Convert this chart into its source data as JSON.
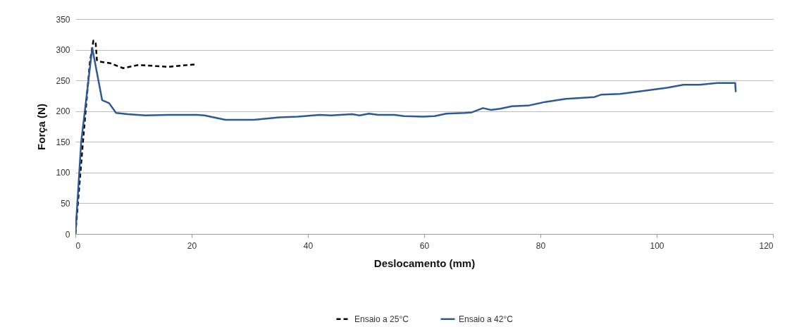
{
  "chart_data": {
    "type": "line",
    "xlabel": "Deslocamento (mm)",
    "ylabel": "Força (N)",
    "xlim": [
      0,
      120
    ],
    "xticks": [
      0,
      20,
      40,
      60,
      80,
      100,
      120
    ],
    "ylim": [
      0,
      350
    ],
    "yticks": [
      0,
      50,
      100,
      150,
      200,
      250,
      300,
      350
    ],
    "grid": "y",
    "legend": "bottom",
    "series": [
      {
        "name": "Ensaio a 25°C",
        "color": "#000000",
        "line_style": "dashed",
        "x": [
          0,
          1.3,
          2.5,
          3.1,
          3.5,
          3.7,
          4,
          6,
          8.2,
          10.7,
          13,
          16,
          18,
          20.6
        ],
        "values": [
          0,
          150,
          280,
          315,
          310,
          283,
          281,
          278,
          270,
          275,
          274,
          272,
          274,
          276
        ]
      },
      {
        "name": "Ensaio a 42°C",
        "color": "#2e5a94",
        "line_style": "solid",
        "x": [
          0,
          1,
          2.9,
          4.6,
          5.8,
          7,
          9,
          12,
          16,
          19.8,
          21,
          22.2,
          25.8,
          29,
          30.7,
          35.1,
          38.3,
          42,
          44,
          47.6,
          48.9,
          50.5,
          52.1,
          54.9,
          56.5,
          59.8,
          61.8,
          63.8,
          67,
          68.2,
          70.1,
          71.5,
          73.1,
          75.1,
          77.9,
          80.8,
          84.4,
          89.3,
          90.5,
          93.7,
          97.7,
          101.8,
          104.6,
          107.4,
          110.7,
          113.5,
          113.6
        ],
        "values": [
          0,
          150,
          303,
          218,
          213,
          197,
          195,
          193,
          194,
          194,
          194,
          193,
          186,
          186,
          186,
          190,
          191,
          194,
          193,
          195,
          193,
          196,
          194,
          194,
          192,
          191,
          192,
          196,
          197,
          198,
          205,
          202,
          204,
          208,
          209,
          215,
          220,
          223,
          227,
          228,
          233,
          238,
          243,
          243,
          246,
          246,
          231
        ]
      }
    ]
  }
}
